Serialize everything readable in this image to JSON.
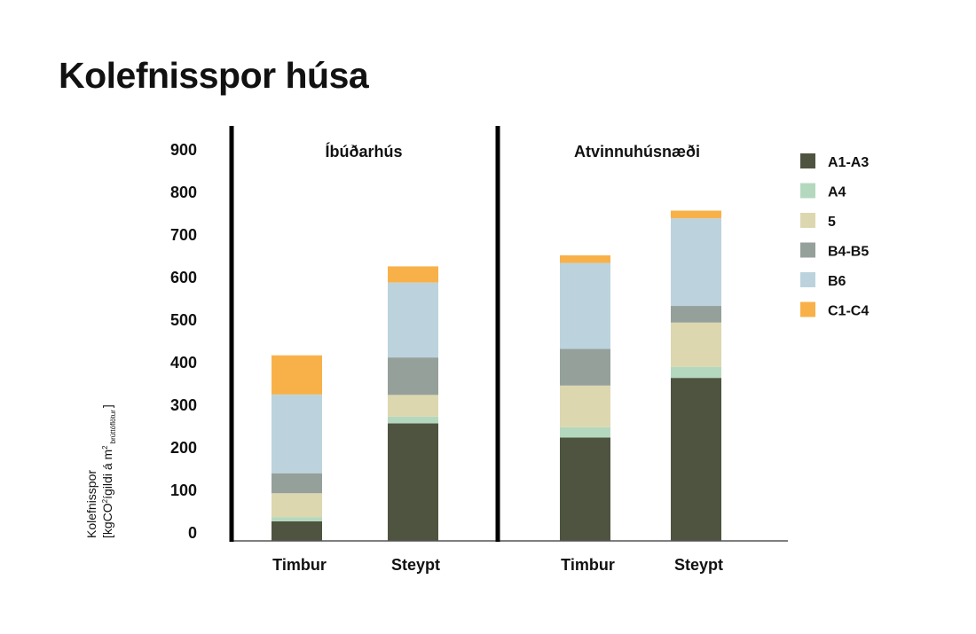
{
  "title": "Kolefnisspor húsa",
  "chart_data": {
    "type": "bar",
    "stacked": true,
    "ylabel_line1": "Kolefnisspor",
    "ylabel_line2_pre": "[kgCO",
    "ylabel_sup1": "2",
    "ylabel_line2_mid": "ígildi á m",
    "ylabel_sup2": "2",
    "ylabel_sub": "brúttóflötur",
    "ylabel_line2_post": "]",
    "ylim": [
      0,
      980
    ],
    "yticks": [
      0,
      100,
      200,
      300,
      400,
      500,
      600,
      700,
      800,
      900
    ],
    "grid": false,
    "legend_position": "right",
    "groups": [
      {
        "label": "Íbúðarhús",
        "categories": [
          "Timbur",
          "Steypt"
        ]
      },
      {
        "label": "Atvinnuhúsnæði",
        "categories": [
          "Timbur",
          "Steypt"
        ]
      }
    ],
    "categories": [
      "Timbur",
      "Steypt",
      "Timbur",
      "Steypt"
    ],
    "series": [
      {
        "name": "A1-A3",
        "color": "#4e5440",
        "values": [
          46,
          276,
          243,
          383
        ]
      },
      {
        "name": "A4",
        "color": "#b4d8be",
        "values": [
          10,
          16,
          24,
          26
        ]
      },
      {
        "name": "5",
        "color": "#ddd7b0",
        "values": [
          56,
          51,
          98,
          104
        ]
      },
      {
        "name": "B4-B5",
        "color": "#95a09b",
        "values": [
          47,
          88,
          86,
          39
        ]
      },
      {
        "name": "B6",
        "color": "#bcd3de",
        "values": [
          185,
          176,
          202,
          206
        ]
      },
      {
        "name": "C1-C4",
        "color": "#f8b149",
        "values": [
          92,
          38,
          18,
          18
        ]
      }
    ]
  }
}
